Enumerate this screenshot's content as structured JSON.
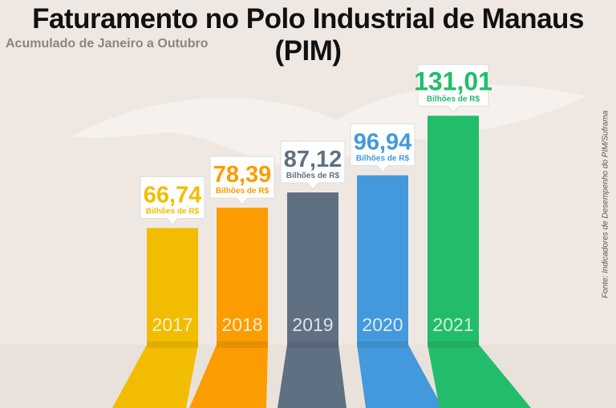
{
  "chart_data": {
    "type": "bar",
    "title": "Faturamento no Polo Industrial de Manaus (PIM)",
    "subtitle": "Acumulado de Janeiro a Outubro",
    "source": "Fonte: Indicadores de Desempenho do PIM/Suframa",
    "categories": [
      "2017",
      "2018",
      "2019",
      "2020",
      "2021"
    ],
    "values": [
      66.74,
      78.39,
      87.12,
      96.94,
      131.01
    ],
    "value_labels": [
      "66,74",
      "78,39",
      "87,12",
      "96,94",
      "131,01"
    ],
    "unit_label": "Bilhões de R$",
    "colors": [
      "#f2bd00",
      "#fb9c00",
      "#5f7083",
      "#4399dc",
      "#22bd6b"
    ],
    "xlabel": "",
    "ylabel": "",
    "ylim": [
      0,
      140
    ],
    "grid": false
  }
}
